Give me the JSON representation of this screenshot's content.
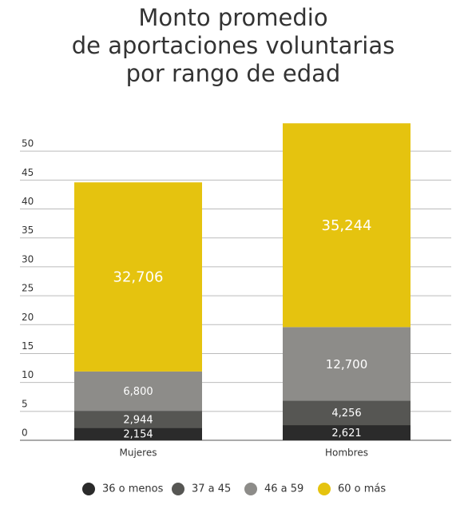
{
  "chart_data": {
    "type": "stacked-bar",
    "title": [
      "Monto promedio",
      "de aportaciones voluntarias",
      "por rango de edad"
    ],
    "categories": [
      "Mujeres",
      "Hombres"
    ],
    "series": [
      {
        "name": "36 o menos",
        "color": "#2b2b2b",
        "values": [
          2.154,
          2.621
        ],
        "value_labels": [
          "2,154",
          "2,621"
        ]
      },
      {
        "name": "37 a 45",
        "color": "#565653",
        "values": [
          2.944,
          4.256
        ],
        "value_labels": [
          "2,944",
          "4,256"
        ]
      },
      {
        "name": "46 a 59",
        "color": "#8d8c89",
        "values": [
          6.8,
          12.7
        ],
        "value_labels": [
          "6,800",
          "12,700"
        ]
      },
      {
        "name": "60 o más",
        "color": "#e5c30f",
        "values": [
          32.706,
          35.244
        ],
        "value_labels": [
          "32,706",
          "35,244"
        ]
      }
    ],
    "ylim": [
      0,
      55
    ],
    "yticks": [
      0,
      5,
      10,
      15,
      20,
      25,
      30,
      35,
      40,
      45,
      50
    ],
    "grid": true,
    "legend": "bottom"
  }
}
